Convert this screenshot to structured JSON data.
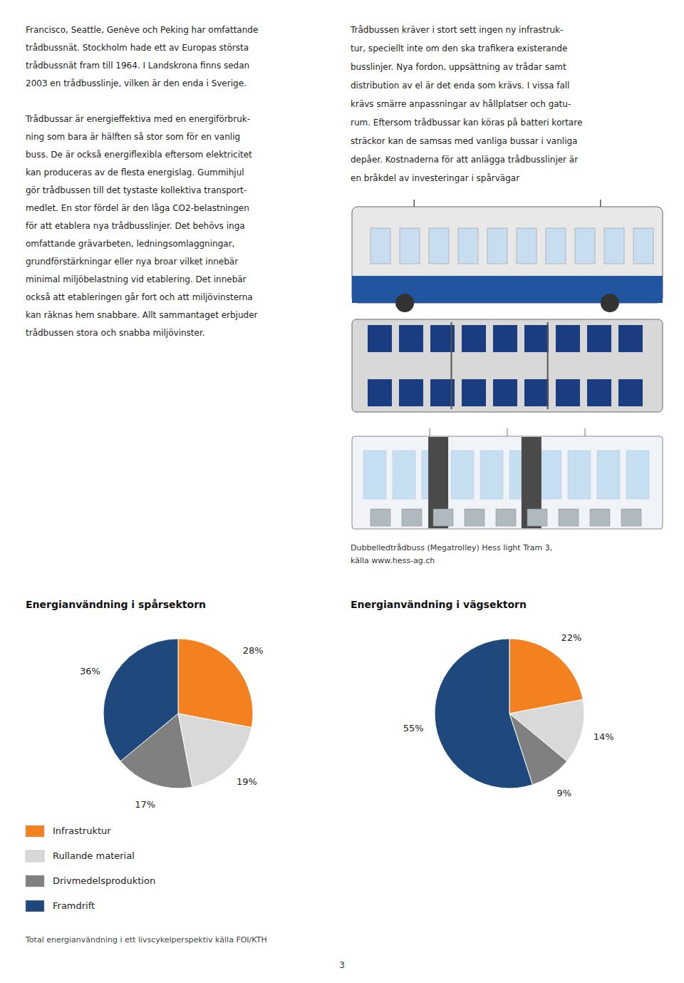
{
  "chart_data": [
    {
      "type": "pie",
      "title": "Energianvändning i spårsektorn",
      "categories": [
        "Infrastruktur",
        "Rullande material",
        "Drivmedelsproduktion",
        "Framdrift"
      ],
      "values": [
        28,
        19,
        17,
        36
      ],
      "value_labels": [
        "28%",
        "19%",
        "17%",
        "36%"
      ],
      "colors": [
        "#F4811F",
        "#D9D9D9",
        "#808080",
        "#1F487C"
      ],
      "data_labels": true,
      "legend": "bottom"
    },
    {
      "type": "pie",
      "title": "Energianvändning i vägsektorn",
      "categories": [
        "Infrastruktur",
        "Rullande material",
        "Drivmedelsproduktion",
        "Framdrift"
      ],
      "values": [
        22,
        14,
        9,
        55
      ],
      "value_labels": [
        "22%",
        "14%",
        "9%",
        "55%"
      ],
      "colors": [
        "#F4811F",
        "#D9D9D9",
        "#808080",
        "#1F487C"
      ],
      "data_labels": true
    }
  ],
  "left_column": [
    [
      "Francisco, Seattle, Genève och Peking har omfattande",
      "trådbussnät. Stockholm hade ett av Europas största",
      "trådbussnät fram till 1964. I Landskrona finns sedan",
      "2003 en trådbusslinje, vilken är den enda i Sverige."
    ],
    [
      "Trådbussar är energieffektiva med en energiförbruk-",
      "ning som bara är hälften så stor som för en vanlig",
      "buss. De är också energiflexibla eftersom elektricitet",
      "kan produceras av de flesta energislag. Gummihjul",
      "gör trådbussen till det tystaste kollektiva transport-",
      "medlet. En stor fördel är den låga CO2-belastningen",
      "för att etablera nya trådbusslinjer. Det behövs inga",
      "omfattande grävarbeten, ledningsomlaggningar,",
      "grundförstärkningar eller nya broar vilket innebär",
      "minimal miljöbelastning vid etablering. Det innebär",
      "också att etableringen går fort och att miljövinsterna",
      "kan räknas hem snabbare. Allt sammantaget erbjuder",
      "trådbussen stora och snabba miljövinster."
    ]
  ],
  "right_column": [
    "Trådbussen kräver i stort sett ingen ny infrastruk-",
    "tur, speciellt inte om den ska trafikera existerande",
    "busslinjer. Nya fordon, uppsättning av trådar samt",
    "distribution av el är det enda som krävs. I vissa fall",
    "krävs smärre anpassningar av hållplatser och gatu-",
    "rum. Eftersom trådbussar kan köras på batteri kortare",
    "sträckor kan de samsas med vanliga bussar i vanliga",
    "depåer. Kostnaderna för att anlägga trådbusslinjer är",
    "en bråkdel av investeringar i spårvägar"
  ],
  "caption": [
    "Dubbelledtrådbuss (Megatrolley) Hess light Tram 3,",
    "källa www.hess-ag.ch"
  ],
  "footer": "Total energianvändning i ett livscykelperspektiv källa FOI/KTH",
  "page_number": "3"
}
